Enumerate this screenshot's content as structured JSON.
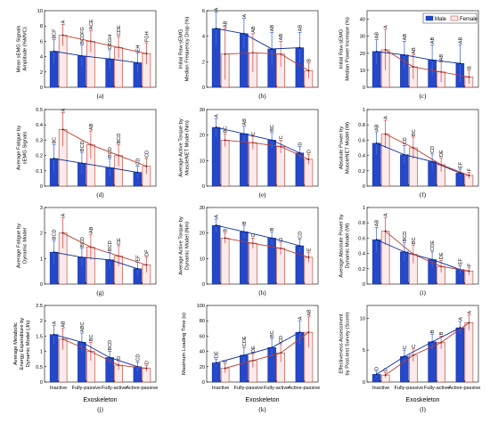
{
  "colors": {
    "male": "#2448c8",
    "male_edge": "#0a2a9a",
    "female": "#fbeaea",
    "female_edge": "#c0392b",
    "err": "#4a6ee0",
    "err_f": "#d9534f"
  },
  "legend": {
    "position": "top-right",
    "entries": [
      "Male",
      "Female"
    ]
  },
  "xlabel": "Exoskeleton",
  "categories": [
    "Inactive",
    "Fully-passive",
    "Fully-active",
    "Active-passive"
  ],
  "chart_data": [
    {
      "type": "bar",
      "label": "(a)",
      "ylabel": "Mean sEMG Signals\nAmplitude (%MVC)",
      "ylim": [
        0,
        10
      ],
      "yticks": [
        0,
        2,
        4,
        6,
        8,
        10
      ],
      "show_xticks": false,
      "series": [
        {
          "name": "Male",
          "values": [
            4.7,
            4.1,
            3.7,
            3.2
          ],
          "err": [
            1.5,
            1.4,
            1.2,
            1.3
          ],
          "sig": [
            "BCF",
            "BCDFG",
            "DEGH",
            "EH"
          ]
        },
        {
          "name": "Female",
          "values": [
            6.8,
            6.0,
            5.2,
            4.4
          ],
          "err": [
            1.4,
            1.4,
            1.4,
            1.4
          ],
          "sig": [
            "A",
            "ACE",
            "CDE",
            "FGH"
          ]
        }
      ]
    },
    {
      "type": "bar",
      "label": "(b)",
      "ylabel": "Initial Raw sEMG\nMedian Frequency Drop (%)",
      "ylim": [
        0,
        6
      ],
      "yticks": [
        0,
        2,
        4,
        6
      ],
      "show_xticks": false,
      "series": [
        {
          "name": "Male",
          "values": [
            4.6,
            4.2,
            3.0,
            3.1
          ],
          "err": [
            1.3,
            1.2,
            1.3,
            1.2
          ],
          "sig": [
            "A",
            "A",
            "AB",
            "AB"
          ]
        },
        {
          "name": "Female",
          "values": [
            2.6,
            2.7,
            2.6,
            1.3
          ],
          "err": [
            2.0,
            1.5,
            1.0,
            0.6
          ],
          "sig": [
            "AB",
            "AB",
            "AB",
            "B"
          ]
        }
      ]
    },
    {
      "type": "bar",
      "label": "(c)",
      "ylabel": "Initial Raw sEMG\nMedian Power Increase (%)",
      "ylim": [
        0,
        45
      ],
      "yticks": [
        0,
        10,
        20,
        30,
        40
      ],
      "show_xticks": false,
      "legend": true,
      "series": [
        {
          "name": "Male",
          "values": [
            21,
            19,
            16,
            14
          ],
          "err": [
            7,
            8,
            9,
            11
          ],
          "sig": [
            "AB",
            "AB",
            "AB",
            "AB"
          ]
        },
        {
          "name": "Female",
          "values": [
            22,
            12,
            9,
            6
          ],
          "err": [
            12,
            7,
            6,
            4
          ],
          "sig": [
            "A",
            "AB",
            "AB",
            "B"
          ]
        }
      ]
    },
    {
      "type": "bar",
      "label": "(d)",
      "ylabel": "Average Fatigue by\nsEMG Signals",
      "ylim": [
        0,
        0.5
      ],
      "yticks": [
        0,
        0.1,
        0.2,
        0.3,
        0.4,
        0.5
      ],
      "show_xticks": false,
      "series": [
        {
          "name": "Male",
          "values": [
            0.18,
            0.15,
            0.12,
            0.09
          ],
          "err": [
            0.09,
            0.07,
            0.06,
            0.04
          ],
          "sig": [
            "BC",
            "BCD",
            "BCD",
            "CD"
          ]
        },
        {
          "name": "Female",
          "values": [
            0.37,
            0.27,
            0.2,
            0.13
          ],
          "err": [
            0.11,
            0.09,
            0.07,
            0.05
          ],
          "sig": [
            "A",
            "AB",
            "BCD",
            "CD"
          ]
        }
      ]
    },
    {
      "type": "bar",
      "label": "(e)",
      "ylabel": "Average Active Torque by\nMuscleNET Model (Nm)",
      "ylim": [
        0,
        30
      ],
      "yticks": [
        0,
        10,
        20,
        30
      ],
      "show_xticks": false,
      "series": [
        {
          "name": "Male",
          "values": [
            23,
            20.5,
            18,
            13
          ],
          "err": [
            3.5,
            3.0,
            3.0,
            2.5
          ],
          "sig": [
            "A",
            "AB",
            "BC",
            "D"
          ]
        },
        {
          "name": "Female",
          "values": [
            18,
            17,
            15.5,
            10.5
          ],
          "err": [
            2.5,
            2.5,
            2.5,
            2.0
          ],
          "sig": [
            "BC",
            "C",
            "C",
            "D"
          ]
        }
      ]
    },
    {
      "type": "bar",
      "label": "(f)",
      "ylabel": "Absolute Power by\nMuscleNET Model (W)",
      "ylim": [
        0,
        1
      ],
      "yticks": [
        0,
        0.2,
        0.4,
        0.6,
        0.8,
        1
      ],
      "show_xticks": false,
      "series": [
        {
          "name": "Male",
          "values": [
            0.56,
            0.41,
            0.32,
            0.17
          ],
          "err": [
            0.15,
            0.12,
            0.1,
            0.05
          ],
          "sig": [
            "AB",
            "CD",
            "CD",
            "EF"
          ]
        },
        {
          "name": "Female",
          "values": [
            0.68,
            0.5,
            0.28,
            0.14
          ],
          "err": [
            0.18,
            0.14,
            0.09,
            0.04
          ],
          "sig": [
            "A",
            "BC",
            "DE",
            "F"
          ]
        }
      ]
    },
    {
      "type": "bar",
      "label": "(g)",
      "ylabel": "Average Fatigue by\nDynamic Model",
      "ylim": [
        0,
        3
      ],
      "yticks": [
        0,
        1,
        2,
        3
      ],
      "show_xticks": false,
      "series": [
        {
          "name": "Male",
          "values": [
            1.25,
            1.05,
            0.95,
            0.6
          ],
          "err": [
            0.45,
            0.35,
            0.3,
            0.25
          ],
          "sig": [
            "BCD",
            "BCD",
            "BCD",
            "EF"
          ]
        },
        {
          "name": "Female",
          "values": [
            2.0,
            1.45,
            1.1,
            0.75
          ],
          "err": [
            0.6,
            0.5,
            0.4,
            0.3
          ],
          "sig": [
            "A",
            "AB",
            "CE",
            "DF"
          ]
        }
      ]
    },
    {
      "type": "bar",
      "label": "(h)",
      "ylabel": "Average Active Torque by\nDynamic Model (Nm)",
      "ylim": [
        0,
        30
      ],
      "yticks": [
        0,
        10,
        20,
        30
      ],
      "show_xticks": false,
      "series": [
        {
          "name": "Male",
          "values": [
            23,
            20.5,
            18,
            15
          ],
          "err": [
            2.5,
            2.5,
            2.5,
            2.5
          ],
          "sig": [
            "A",
            "B",
            "B",
            "CD"
          ]
        },
        {
          "name": "Female",
          "values": [
            18,
            16,
            14,
            10.5
          ],
          "err": [
            2.0,
            2.0,
            2.5,
            2.0
          ],
          "sig": [
            "B",
            "C",
            "D",
            "E"
          ]
        }
      ]
    },
    {
      "type": "bar",
      "label": "(i)",
      "ylabel": "Average Absolute Power by\nDynamic Model (W)",
      "ylim": [
        0,
        1
      ],
      "yticks": [
        0,
        0.2,
        0.4,
        0.6,
        0.8,
        1
      ],
      "show_xticks": false,
      "series": [
        {
          "name": "Male",
          "values": [
            0.58,
            0.42,
            0.32,
            0.19
          ],
          "err": [
            0.16,
            0.12,
            0.1,
            0.05
          ],
          "sig": [
            "AB",
            "BCD",
            "CDE",
            "EF"
          ]
        },
        {
          "name": "Female",
          "values": [
            0.69,
            0.39,
            0.23,
            0.17
          ],
          "err": [
            0.18,
            0.12,
            0.08,
            0.05
          ],
          "sig": [
            "A",
            "BC",
            "DE",
            "F"
          ]
        }
      ]
    },
    {
      "type": "bar",
      "label": "(j)",
      "ylabel": "Average Metabolic\nEnergy Expenditure by\nDynamic Model (J/s)",
      "ylim": [
        0,
        2.5
      ],
      "yticks": [
        0,
        0.5,
        1,
        1.5,
        2,
        2.5
      ],
      "show_xticks": true,
      "series": [
        {
          "name": "Male",
          "values": [
            1.55,
            1.3,
            0.8,
            0.5
          ],
          "err": [
            0.3,
            0.3,
            0.2,
            0.15
          ],
          "sig": [
            "A",
            "ABC",
            "BCD",
            "CD"
          ]
        },
        {
          "name": "Female",
          "values": [
            1.4,
            1.0,
            0.55,
            0.45
          ],
          "err": [
            0.35,
            0.3,
            0.15,
            0.1
          ],
          "sig": [
            "AB",
            "BC",
            "D",
            "D"
          ]
        }
      ]
    },
    {
      "type": "bar",
      "label": "(k)",
      "ylabel": "Maximum Loading Time (s)",
      "ylim": [
        0,
        100
      ],
      "yticks": [
        0,
        20,
        40,
        60,
        80,
        100
      ],
      "show_xticks": true,
      "series": [
        {
          "name": "Male",
          "values": [
            25,
            35,
            45,
            65
          ],
          "err": [
            5,
            10,
            12,
            15
          ],
          "sig": [
            "DE",
            "CDE",
            "BC",
            "A"
          ]
        },
        {
          "name": "Female",
          "values": [
            18,
            28,
            38,
            65
          ],
          "err": [
            6,
            9,
            12,
            20
          ],
          "sig": [
            "E",
            "DE",
            "CD",
            "AB"
          ]
        }
      ]
    },
    {
      "type": "bar",
      "label": "(l)",
      "ylabel": "Effectiveness Assessment\nby Post-test Survey (Score)",
      "ylim": [
        0,
        12
      ],
      "yticks": [
        0,
        5,
        10
      ],
      "show_xticks": true,
      "series": [
        {
          "name": "Male",
          "values": [
            1.2,
            4.0,
            6.3,
            8.5
          ],
          "err": [
            0.5,
            1.0,
            1.2,
            1.0
          ],
          "sig": [
            "D",
            "C",
            "B",
            "A"
          ]
        },
        {
          "name": "Female",
          "values": [
            1.1,
            4.2,
            6.2,
            9.3
          ],
          "err": [
            0.4,
            1.0,
            1.0,
            1.2
          ],
          "sig": [
            "D",
            "C",
            "B",
            "A"
          ]
        }
      ]
    }
  ]
}
